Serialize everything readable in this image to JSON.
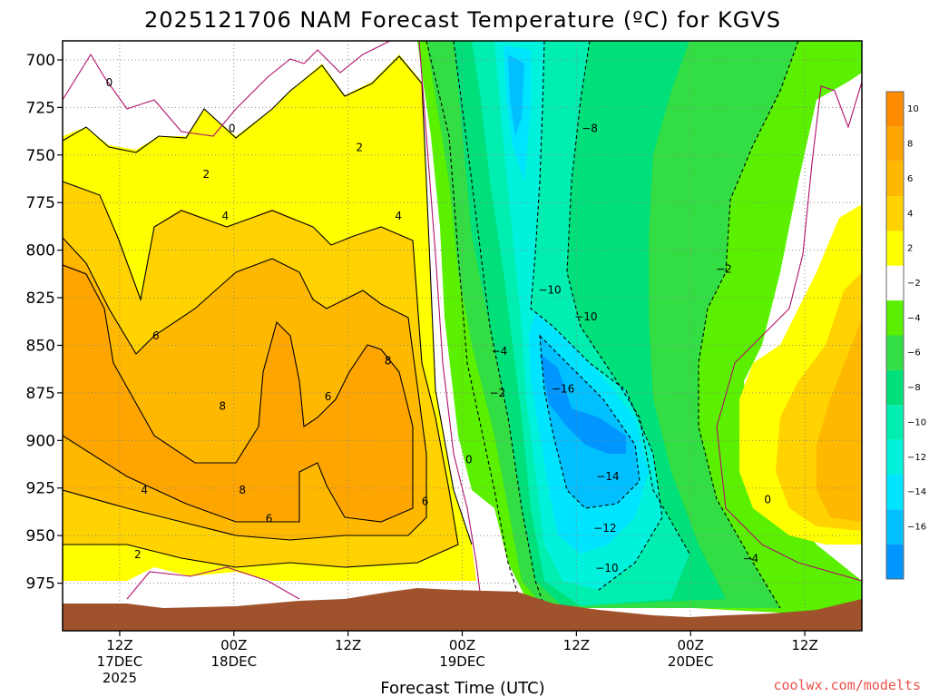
{
  "chart_data": {
    "type": "heatmap",
    "title": "2025121706 NAM Forecast Temperature (ºC) for KGVS",
    "xlabel": "Forecast Time (UTC)",
    "ylabel": "",
    "credit": "coolwx.com/modelts",
    "y_axis": {
      "ticks": [
        "700",
        "725",
        "750",
        "775",
        "800",
        "825",
        "850",
        "875",
        "900",
        "925",
        "950",
        "975"
      ],
      "values": [
        700,
        725,
        750,
        775,
        800,
        825,
        850,
        875,
        900,
        925,
        950,
        975
      ],
      "range": [
        690,
        1000
      ],
      "inverted": true
    },
    "x_axis": {
      "ticks": [
        {
          "hour": 6,
          "line1": "12Z",
          "line2": "17DEC",
          "line3": "2025"
        },
        {
          "hour": 18,
          "line1": "00Z",
          "line2": "18DEC",
          "line3": ""
        },
        {
          "hour": 30,
          "line1": "12Z",
          "line2": "",
          "line3": ""
        },
        {
          "hour": 42,
          "line1": "00Z",
          "line2": "19DEC",
          "line3": ""
        },
        {
          "hour": 54,
          "line1": "12Z",
          "line2": "",
          "line3": ""
        },
        {
          "hour": 66,
          "line1": "00Z",
          "line2": "20DEC",
          "line3": ""
        },
        {
          "hour": 78,
          "line1": "12Z",
          "line2": "",
          "line3": ""
        }
      ],
      "range": [
        0,
        84
      ]
    },
    "grid": true,
    "colorbar": {
      "labels": [
        "10",
        "8",
        "6",
        "4",
        "2",
        "−2",
        "−4",
        "−6",
        "−8",
        "−10",
        "−12",
        "−14",
        "−16"
      ],
      "bands": [
        {
          "lo": 10,
          "hi": 12,
          "color": "#ff8c00"
        },
        {
          "lo": 8,
          "hi": 10,
          "color": "#ffa500"
        },
        {
          "lo": 6,
          "hi": 8,
          "color": "#ffb800"
        },
        {
          "lo": 4,
          "hi": 6,
          "color": "#ffd200"
        },
        {
          "lo": 2,
          "hi": 4,
          "color": "#ffff00"
        },
        {
          "lo": -2,
          "hi": 2,
          "color": "#ffffff"
        },
        {
          "lo": -4,
          "hi": -2,
          "color": "#5af000"
        },
        {
          "lo": -6,
          "hi": -4,
          "color": "#33dd44"
        },
        {
          "lo": -8,
          "hi": -6,
          "color": "#00e07a"
        },
        {
          "lo": -10,
          "hi": -8,
          "color": "#00eeb0"
        },
        {
          "lo": -12,
          "hi": -10,
          "color": "#00f2dc"
        },
        {
          "lo": -14,
          "hi": -12,
          "color": "#00e4ff"
        },
        {
          "lo": -16,
          "hi": -14,
          "color": "#00c0ff"
        },
        {
          "lo": -18,
          "hi": -16,
          "color": "#0096ff"
        }
      ]
    },
    "contour_labels": [
      {
        "text": "0",
        "hour": 4.9,
        "p": 712
      },
      {
        "text": "0",
        "hour": 17.8,
        "p": 736
      },
      {
        "text": "2",
        "hour": 15.1,
        "p": 760
      },
      {
        "text": "2",
        "hour": 31.2,
        "p": 746
      },
      {
        "text": "4",
        "hour": 17.1,
        "p": 782
      },
      {
        "text": "4",
        "hour": 35.3,
        "p": 782
      },
      {
        "text": "6",
        "hour": 9.8,
        "p": 845
      },
      {
        "text": "8",
        "hour": 16.8,
        "p": 882
      },
      {
        "text": "6",
        "hour": 27.9,
        "p": 877
      },
      {
        "text": "8",
        "hour": 34.2,
        "p": 858
      },
      {
        "text": "8",
        "hour": 18.9,
        "p": 926
      },
      {
        "text": "6",
        "hour": 21.7,
        "p": 941
      },
      {
        "text": "6",
        "hour": 38.1,
        "p": 932
      },
      {
        "text": "4",
        "hour": 8.6,
        "p": 926
      },
      {
        "text": "2",
        "hour": 7.9,
        "p": 960
      },
      {
        "text": "-4",
        "hour": 45.9,
        "p": 853
      },
      {
        "text": "-2",
        "hour": 45.7,
        "p": 875
      },
      {
        "text": "0",
        "hour": 42.7,
        "p": 910
      },
      {
        "text": "-10",
        "hour": 51.2,
        "p": 821
      },
      {
        "text": "-10",
        "hour": 55.0,
        "p": 835
      },
      {
        "text": "-16",
        "hour": 52.6,
        "p": 873
      },
      {
        "text": "-14",
        "hour": 57.3,
        "p": 919
      },
      {
        "text": "-12",
        "hour": 57.0,
        "p": 946
      },
      {
        "text": "-10",
        "hour": 57.2,
        "p": 967
      },
      {
        "text": "-8",
        "hour": 55.4,
        "p": 736
      },
      {
        "text": "-2",
        "hour": 69.5,
        "p": 810
      },
      {
        "text": "0",
        "hour": 74.1,
        "p": 931
      },
      {
        "text": "-4",
        "hour": 72.3,
        "p": 962
      }
    ]
  }
}
